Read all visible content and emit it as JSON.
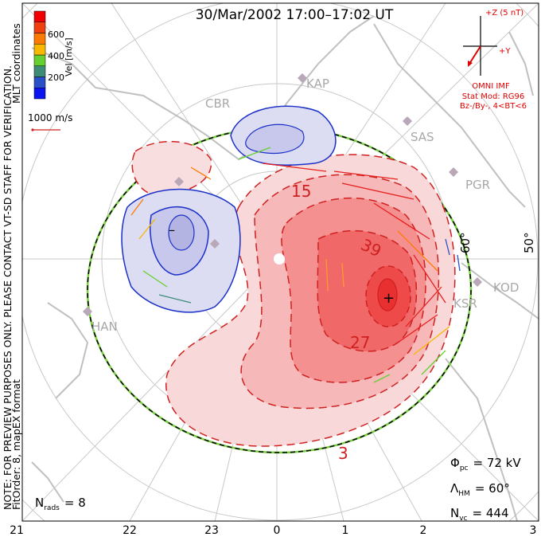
{
  "title": "30/Mar/2002 17:00–17:02 UT",
  "side_note": "NOTE: FOR PREVIEW PURPOSES ONLY. PLEASE CONTACT VT-SD STAFF FOR VERIFICATION.",
  "coord_label": "MLT coordinates",
  "fit_info": "FitOrder: 8, mapEX format",
  "colorbar": {
    "label": "Vel [m/s]",
    "ticks": [
      "200",
      "400",
      "600"
    ],
    "colors": [
      "#0a14f0",
      "#2a50c8",
      "#3e8c78",
      "#66d030",
      "#f8b800",
      "#ff7a00",
      "#f04010",
      "#f00000"
    ]
  },
  "reference_vector": {
    "label": "1000 m/s",
    "color": "#d02020"
  },
  "imf": {
    "z_label": "+Z (5 nT)",
    "y_label": "+Y",
    "source": "OMNI IMF",
    "model": "Stat Mod: RG96",
    "condition": "Bz-/By-, 4<BT<6",
    "color": "#e00000"
  },
  "stats": {
    "phi_pc": {
      "symbol": "Φ",
      "sub": "pc",
      "value": "= 72 kV"
    },
    "lambda_hm": {
      "symbol": "Λ",
      "sub": "HM",
      "value": "= 60°"
    },
    "n_vc": {
      "symbol": "N",
      "sub": "vc",
      "value": "= 444"
    },
    "n_rads": {
      "symbol": "N",
      "sub": "rads",
      "value": "= 8"
    }
  },
  "mlt_labels": [
    "21",
    "22",
    "23",
    "0",
    "1",
    "2",
    "3"
  ],
  "latitude_labels": [
    "60°",
    "50°"
  ],
  "stations": [
    "CBR",
    "KAP",
    "SAS",
    "PGR",
    "KOD",
    "KSR",
    "HAN"
  ],
  "contour_labels": {
    "c1": "15",
    "c2": "39",
    "c3": "27",
    "c4": "3",
    "min": "–",
    "max": "+"
  }
}
